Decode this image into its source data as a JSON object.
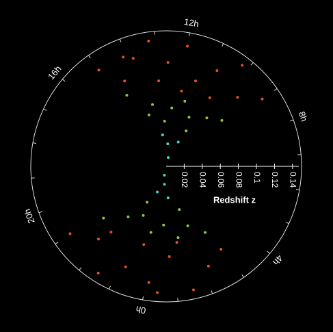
{
  "chart_data": {
    "type": "polar-scatter",
    "xlabel": "Redshift z",
    "rlim": [
      0,
      0.15
    ],
    "rticks": [
      0.02,
      0.04,
      0.06,
      0.08,
      0.1,
      0.12,
      0.14
    ],
    "angle_ticks": [
      {
        "value": 12,
        "label": "12h"
      },
      {
        "value": 8,
        "label": "8h"
      },
      {
        "value": 4,
        "label": "4h"
      },
      {
        "value": 0,
        "label": "0h"
      },
      {
        "value": 20,
        "label": "20h"
      },
      {
        "value": 16,
        "label": "16h"
      }
    ],
    "series": [
      {
        "color": "#e8501c",
        "x": [
          9.0,
          9.6,
          10.2,
          10.8,
          11.4,
          12.0,
          12.6,
          13.2,
          13.8,
          14.4,
          15.0,
          10.5,
          11.9,
          13.0,
          14.1,
          21.0,
          21.8,
          22.5,
          23.2,
          0.1,
          0.8,
          1.5,
          2.2,
          2.9,
          23.6,
          22.0,
          1.2,
          0.4
        ],
        "values": [
          0.13,
          0.11,
          0.14,
          0.12,
          0.1,
          0.135,
          0.115,
          0.14,
          0.125,
          0.105,
          0.13,
          0.09,
          0.085,
          0.095,
          0.13,
          0.13,
          0.11,
          0.14,
          0.12,
          0.13,
          0.1,
          0.14,
          0.12,
          0.11,
          0.09,
          0.095,
          0.085,
          0.14
        ]
      },
      {
        "color": "#8cc83c",
        "x": [
          9.3,
          10.0,
          11.0,
          11.6,
          12.3,
          13.5,
          14.6,
          10.7,
          12.8,
          13.9,
          21.3,
          22.2,
          23.0,
          23.8,
          0.5,
          1.3,
          2.0,
          2.7,
          22.8,
          1.8
        ],
        "values": [
          0.08,
          0.07,
          0.06,
          0.075,
          0.065,
          0.07,
          0.09,
          0.045,
          0.05,
          0.06,
          0.09,
          0.07,
          0.06,
          0.075,
          0.065,
          0.08,
          0.07,
          0.085,
          0.045,
          0.05
        ]
      },
      {
        "color": "#40d8c8",
        "x": [
          11.8,
          12.4,
          10.9,
          13.1,
          23.9,
          0.3,
          23.4,
          0.9
        ],
        "values": [
          0.01,
          0.025,
          0.03,
          0.035,
          0.01,
          0.02,
          0.03,
          0.035
        ]
      }
    ]
  }
}
